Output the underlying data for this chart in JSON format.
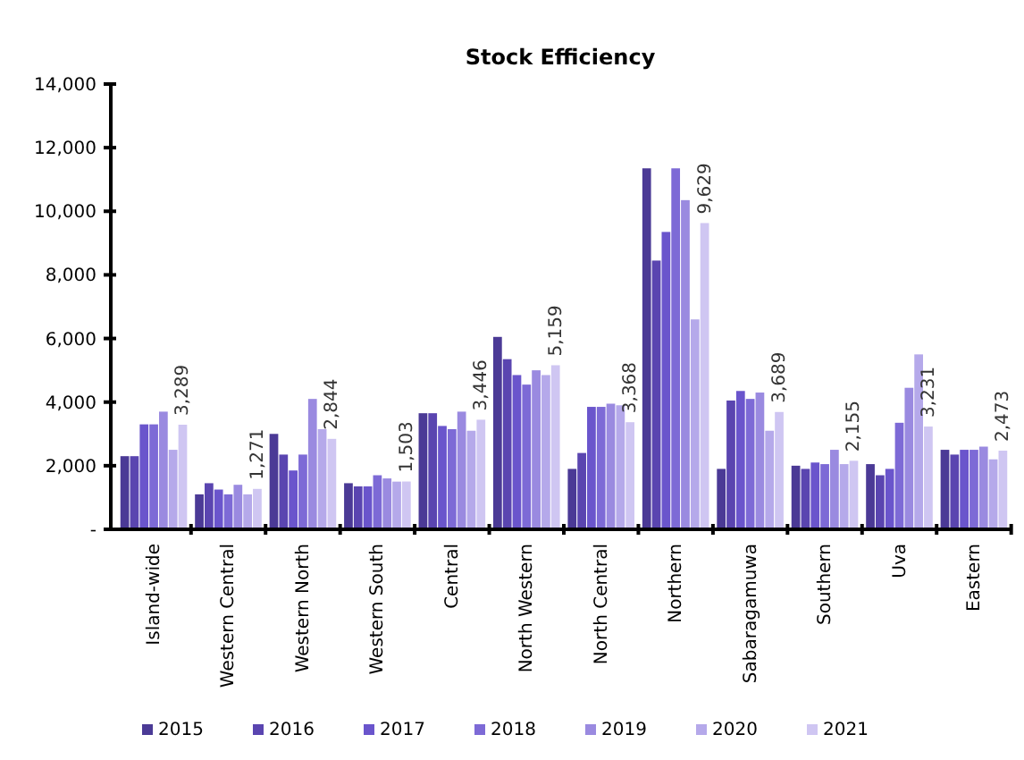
{
  "chart_data": {
    "type": "bar",
    "title": "Stock Efficiency",
    "categories": [
      "Island-wide",
      "Western Central",
      "Western  North",
      "Western  South",
      "Central",
      "North Western",
      "North Central",
      "Northern",
      "Sabaragamuwa",
      "Southern",
      "Uva",
      "Eastern"
    ],
    "series": [
      {
        "name": "2015",
        "color": "#4b3a96",
        "values": [
          2300,
          1100,
          3000,
          1450,
          3650,
          6050,
          1900,
          11350,
          1900,
          2000,
          2050,
          2500
        ]
      },
      {
        "name": "2016",
        "color": "#5a45b0",
        "values": [
          2300,
          1450,
          2350,
          1350,
          3650,
          5350,
          2400,
          8450,
          4050,
          1900,
          1700,
          2350
        ]
      },
      {
        "name": "2017",
        "color": "#6a55cc",
        "values": [
          3300,
          1250,
          1850,
          1350,
          3250,
          4850,
          3850,
          9350,
          4350,
          2100,
          1900,
          2500
        ]
      },
      {
        "name": "2018",
        "color": "#7d6ad6",
        "values": [
          3300,
          1100,
          2350,
          1700,
          3150,
          4550,
          3850,
          11350,
          4100,
          2050,
          3350,
          2500
        ]
      },
      {
        "name": "2019",
        "color": "#9a8ae0",
        "values": [
          3700,
          1400,
          4100,
          1600,
          3700,
          5000,
          3950,
          10350,
          4300,
          2500,
          4450,
          2600
        ]
      },
      {
        "name": "2020",
        "color": "#b5a9ea",
        "values": [
          2500,
          1100,
          3150,
          1500,
          3100,
          4850,
          3900,
          6600,
          3100,
          2050,
          5500,
          2200
        ]
      },
      {
        "name": "2021",
        "color": "#cfc6f2",
        "values": [
          3289,
          1271,
          2844,
          1503,
          3446,
          5159,
          3368,
          9629,
          3689,
          2155,
          3231,
          2473
        ],
        "value_labels": [
          "3,289",
          "1,271",
          "2,844",
          "1,503",
          "3,446",
          "5,159",
          "3,368",
          "9,629",
          "3,689",
          "2,155",
          "3,231",
          "2,473"
        ]
      }
    ],
    "ylim": [
      0,
      14000
    ],
    "yticks": [
      {
        "value": 0,
        "label": "-"
      },
      {
        "value": 2000,
        "label": "2,000"
      },
      {
        "value": 4000,
        "label": "4,000"
      },
      {
        "value": 6000,
        "label": "6,000"
      },
      {
        "value": 8000,
        "label": "8,000"
      },
      {
        "value": 10000,
        "label": "10,000"
      },
      {
        "value": 12000,
        "label": "12,000"
      },
      {
        "value": 14000,
        "label": "14,000"
      }
    ],
    "legend": "bottom"
  }
}
